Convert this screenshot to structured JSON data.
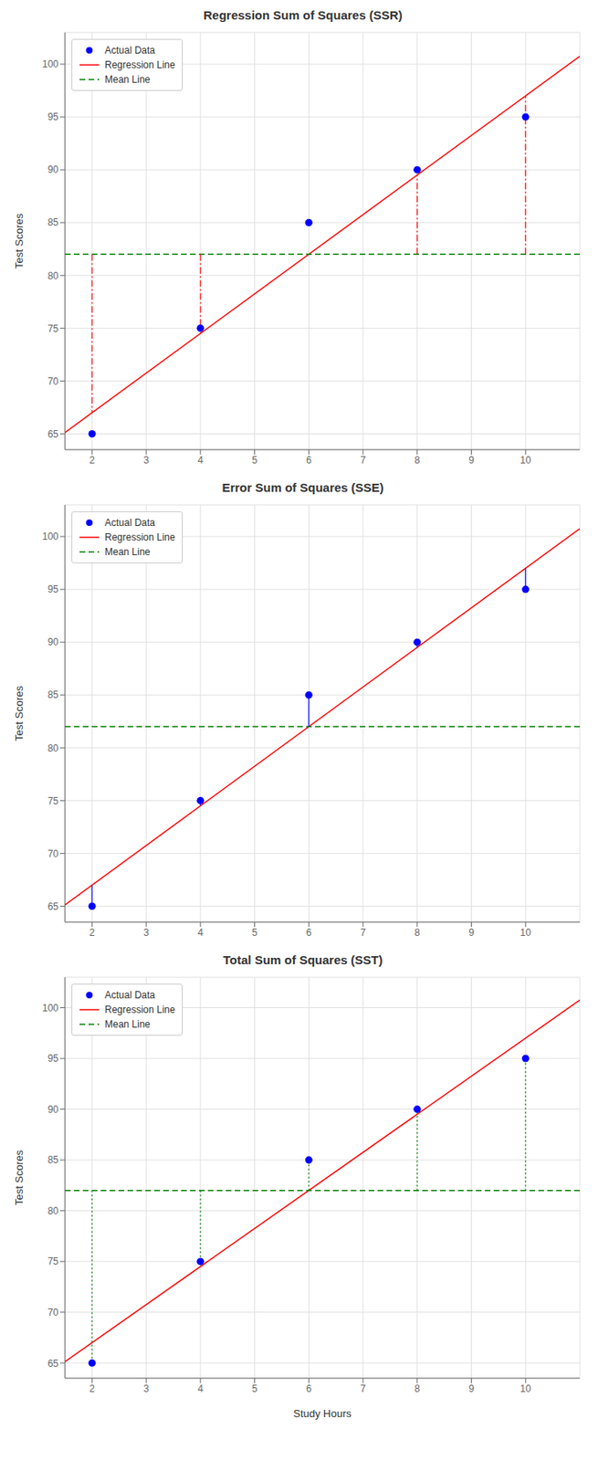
{
  "chart_data": [
    {
      "type": "scatter",
      "title": "Regression Sum of Squares (SSR)",
      "y_label": "Test Scores",
      "xlim": [
        1.5,
        11.0
      ],
      "xticks": [
        2,
        3,
        4,
        5,
        6,
        7,
        8,
        9,
        10
      ],
      "ylim": [
        63.5,
        103
      ],
      "yticks": [
        65,
        70,
        75,
        80,
        85,
        90,
        95,
        100
      ],
      "grid": true,
      "legend": "upper left",
      "series": [
        {
          "name": "Actual Data",
          "type": "scatter",
          "marker": "circle",
          "color": "blue",
          "x": [
            2,
            4,
            6,
            8,
            10
          ],
          "values": [
            65,
            75,
            85,
            90,
            95
          ]
        },
        {
          "name": "Regression Line",
          "type": "line",
          "line_style": "solid",
          "color": "red",
          "x": [
            1.5,
            11.0
          ],
          "values": [
            65.125,
            100.75
          ]
        },
        {
          "name": "Mean Line",
          "type": "line",
          "line_style": "dashed",
          "color": "green",
          "x": [
            1.5,
            11.0
          ],
          "values": [
            82.0,
            82.0
          ]
        },
        {
          "type": "segments",
          "line_style": "dashdot",
          "color": "red",
          "x": [
            2,
            4,
            6,
            8,
            10
          ],
          "y_start": [
            82.0,
            82.0,
            82.0,
            82.0,
            82.0
          ],
          "y_end": [
            67.0,
            74.5,
            82.0,
            89.5,
            97.0
          ]
        }
      ]
    },
    {
      "type": "scatter",
      "title": "Error Sum of Squares (SSE)",
      "y_label": "Test Scores",
      "xlim": [
        1.5,
        11.0
      ],
      "xticks": [
        2,
        3,
        4,
        5,
        6,
        7,
        8,
        9,
        10
      ],
      "ylim": [
        63.5,
        103
      ],
      "yticks": [
        65,
        70,
        75,
        80,
        85,
        90,
        95,
        100
      ],
      "grid": true,
      "legend": "upper left",
      "series": [
        {
          "name": "Actual Data",
          "type": "scatter",
          "marker": "circle",
          "color": "blue",
          "x": [
            2,
            4,
            6,
            8,
            10
          ],
          "values": [
            65,
            75,
            85,
            90,
            95
          ]
        },
        {
          "name": "Regression Line",
          "type": "line",
          "line_style": "solid",
          "color": "red",
          "x": [
            1.5,
            11.0
          ],
          "values": [
            65.125,
            100.75
          ]
        },
        {
          "name": "Mean Line",
          "type": "line",
          "line_style": "dashed",
          "color": "green",
          "x": [
            1.5,
            11.0
          ],
          "values": [
            82.0,
            82.0
          ]
        },
        {
          "type": "segments",
          "line_style": "solid",
          "color": "blue",
          "x": [
            2,
            4,
            6,
            8,
            10
          ],
          "y_start": [
            65,
            75,
            85,
            90,
            95
          ],
          "y_end": [
            67.0,
            74.5,
            82.0,
            89.5,
            97.0
          ]
        }
      ]
    },
    {
      "type": "scatter",
      "title": "Total Sum of Squares (SST)",
      "y_label": "Test Scores",
      "x_label": "Study Hours",
      "xlim": [
        1.5,
        11.0
      ],
      "xticks": [
        2,
        3,
        4,
        5,
        6,
        7,
        8,
        9,
        10
      ],
      "ylim": [
        63.5,
        103
      ],
      "yticks": [
        65,
        70,
        75,
        80,
        85,
        90,
        95,
        100
      ],
      "grid": true,
      "legend": "upper left",
      "series": [
        {
          "name": "Actual Data",
          "type": "scatter",
          "marker": "circle",
          "color": "blue",
          "x": [
            2,
            4,
            6,
            8,
            10
          ],
          "values": [
            65,
            75,
            85,
            90,
            95
          ]
        },
        {
          "name": "Regression Line",
          "type": "line",
          "line_style": "solid",
          "color": "red",
          "x": [
            1.5,
            11.0
          ],
          "values": [
            65.125,
            100.75
          ]
        },
        {
          "name": "Mean Line",
          "type": "line",
          "line_style": "dashed",
          "color": "green",
          "x": [
            1.5,
            11.0
          ],
          "values": [
            82.0,
            82.0
          ]
        },
        {
          "type": "segments",
          "line_style": "dotted",
          "color": "green",
          "x": [
            2,
            4,
            6,
            8,
            10
          ],
          "y_start": [
            82.0,
            82.0,
            82.0,
            82.0,
            82.0
          ],
          "y_end": [
            65,
            75,
            85,
            90,
            95
          ]
        }
      ]
    }
  ]
}
